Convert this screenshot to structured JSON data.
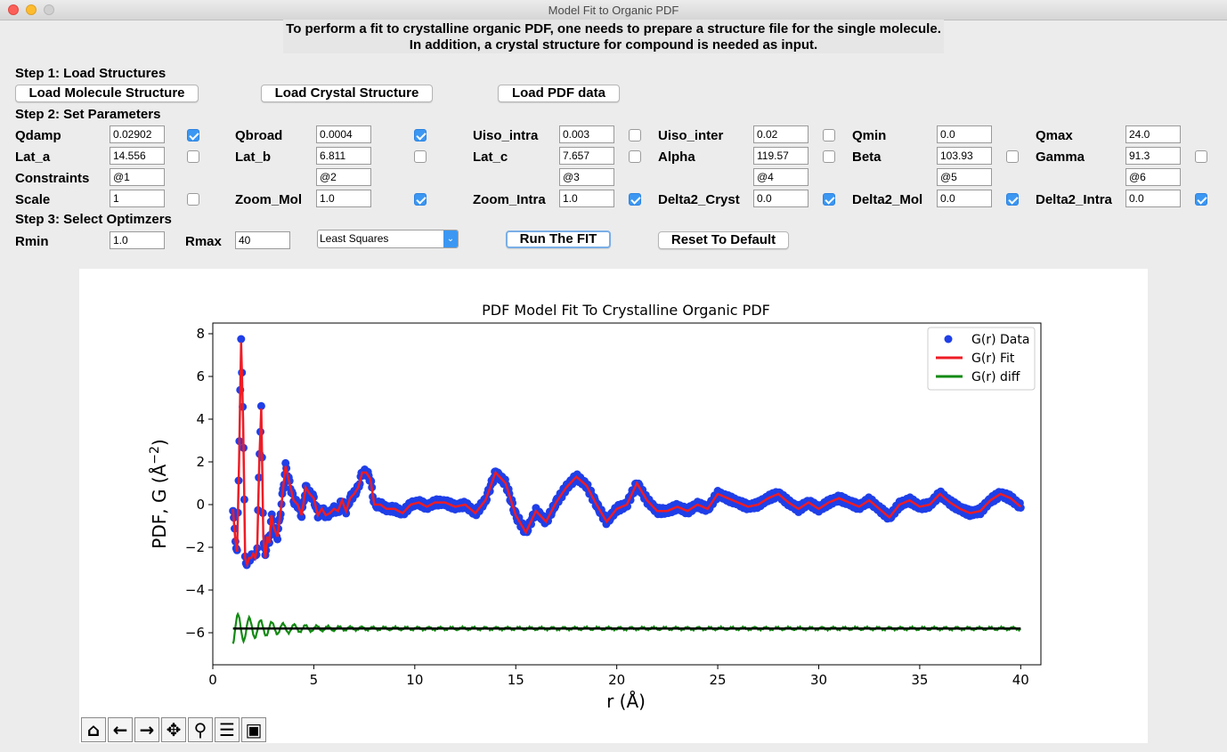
{
  "window": {
    "title": "Model Fit to Organic PDF"
  },
  "intro": {
    "line1": "To perform a fit to crystalline organic PDF, one needs to prepare a structure file for the single molecule.",
    "line2": "In addition, a crystal structure for compound is needed as input."
  },
  "step1": {
    "label": "Step 1: Load Structures",
    "load_molecule": "Load Molecule Structure",
    "load_crystal": "Load Crystal Structure",
    "load_pdf": "Load PDF data"
  },
  "step2": {
    "label": "Step 2: Set Parameters",
    "row1": [
      {
        "name": "Qdamp",
        "value": "0.02902",
        "checked": true
      },
      {
        "name": "Qbroad",
        "value": "0.0004",
        "checked": true
      },
      {
        "name": "Uiso_intra",
        "value": "0.003",
        "checked": false
      },
      {
        "name": "Uiso_inter",
        "value": "0.02",
        "checked": false
      },
      {
        "name": "Qmin",
        "value": "0.0"
      },
      {
        "name": "Qmax",
        "value": "24.0"
      }
    ],
    "row2": [
      {
        "name": "Lat_a",
        "value": "14.556",
        "checked": false
      },
      {
        "name": "Lat_b",
        "value": "6.811",
        "checked": false
      },
      {
        "name": "Lat_c",
        "value": "7.657",
        "checked": false
      },
      {
        "name": "Alpha",
        "value": "119.57",
        "checked": false
      },
      {
        "name": "Beta",
        "value": "103.93",
        "checked": false
      },
      {
        "name": "Gamma",
        "value": "91.3",
        "checked": false
      }
    ],
    "constraints_label": "Constraints",
    "constraints": [
      "@1",
      "@2",
      "@3",
      "@4",
      "@5",
      "@6"
    ],
    "row4": [
      {
        "name": "Scale",
        "value": "1",
        "checked": false
      },
      {
        "name": "Zoom_Mol",
        "value": "1.0",
        "checked": true
      },
      {
        "name": "Zoom_Intra",
        "value": "1.0",
        "checked": true
      },
      {
        "name": "Delta2_Cryst",
        "value": "0.0",
        "checked": true
      },
      {
        "name": "Delta2_Mol",
        "value": "0.0",
        "checked": true
      },
      {
        "name": "Delta2_Intra",
        "value": "0.0",
        "checked": true
      }
    ]
  },
  "step3": {
    "label": "Step 3: Select Optimzers",
    "rmin_label": "Rmin",
    "rmin": "1.0",
    "rmax_label": "Rmax",
    "rmax": "40",
    "optimizer": "Least Squares",
    "run": "Run The FIT",
    "reset": "Reset To Default"
  },
  "chart_data": {
    "type": "line",
    "title": "PDF Model Fit To Crystalline Organic PDF",
    "xlabel": "r (Å)",
    "ylabel_main": "PDF, G (Å",
    "ylabel_sup": "−2",
    "ylabel_close": ")",
    "xlim": [
      0,
      41
    ],
    "ylim": [
      -7.5,
      8.5
    ],
    "xticks": [
      0,
      5,
      10,
      15,
      20,
      25,
      30,
      35,
      40
    ],
    "yticks": [
      -6,
      -4,
      -2,
      0,
      2,
      4,
      6,
      8
    ],
    "legend_position": "top-right",
    "baseline": -5.8,
    "colors": {
      "data": "#1f3fe8",
      "fit": "#ee1c25",
      "diff": "#138a13",
      "baseline": "#000000"
    },
    "series": [
      {
        "name": "G(r) Data",
        "style": "scatter"
      },
      {
        "name": "G(r) Fit",
        "style": "line"
      },
      {
        "name": "G(r) diff",
        "style": "line"
      }
    ],
    "fit_x": [
      1.0,
      1.1,
      1.2,
      1.3,
      1.4,
      1.5,
      1.6,
      1.7,
      1.8,
      1.9,
      2.0,
      2.1,
      2.2,
      2.3,
      2.4,
      2.5,
      2.6,
      2.7,
      2.8,
      2.9,
      3.0,
      3.2,
      3.4,
      3.6,
      3.8,
      4.0,
      4.2,
      4.4,
      4.6,
      4.8,
      5.0,
      5.2,
      5.4,
      5.6,
      5.8,
      6.0,
      6.2,
      6.4,
      6.6,
      6.8,
      7.0,
      7.2,
      7.4,
      7.6,
      7.8,
      8.0,
      8.3,
      8.6,
      9.0,
      9.4,
      9.8,
      10.2,
      10.6,
      11.0,
      11.5,
      12.0,
      12.5,
      13.0,
      13.5,
      14.0,
      14.5,
      15.0,
      15.5,
      16.0,
      16.5,
      17.0,
      17.5,
      18.0,
      18.5,
      19.0,
      19.5,
      20.0,
      20.5,
      21.0,
      21.5,
      22.0,
      22.5,
      23.0,
      23.5,
      24.0,
      24.5,
      25.0,
      25.5,
      26.0,
      26.5,
      27.0,
      27.5,
      28.0,
      28.5,
      29.0,
      29.5,
      30.0,
      30.5,
      31.0,
      31.5,
      32.0,
      32.5,
      33.0,
      33.5,
      34.0,
      34.5,
      35.0,
      35.5,
      36.0,
      36.5,
      37.0,
      37.5,
      38.0,
      38.5,
      39.0,
      39.5,
      40.0
    ],
    "fit_y": [
      -0.2,
      -1.5,
      -2.2,
      2.0,
      7.6,
      4.0,
      -2.5,
      -2.8,
      -2.5,
      -2.5,
      -2.3,
      -2.5,
      -2.0,
      2.0,
      4.5,
      -1.5,
      -2.5,
      -1.5,
      -1.8,
      -0.5,
      -1.0,
      -1.5,
      0.0,
      1.8,
      1.0,
      0.2,
      0.0,
      -0.5,
      0.8,
      0.5,
      0.3,
      -0.5,
      -0.2,
      -0.5,
      -0.4,
      -0.2,
      -0.3,
      0.2,
      -0.3,
      0.3,
      0.5,
      0.8,
      1.5,
      1.5,
      1.2,
      0.0,
      0.0,
      -0.2,
      -0.2,
      -0.4,
      0.0,
      0.1,
      -0.1,
      0.1,
      0.1,
      -0.1,
      0.0,
      -0.4,
      0.2,
      1.5,
      1.0,
      -0.5,
      -1.3,
      -0.3,
      -0.8,
      0.1,
      0.8,
      1.3,
      0.9,
      0.0,
      -0.8,
      -0.2,
      0.0,
      1.0,
      0.2,
      -0.3,
      -0.3,
      -0.1,
      -0.3,
      0.0,
      -0.2,
      0.5,
      0.3,
      0.1,
      -0.1,
      0.0,
      0.3,
      0.5,
      0.1,
      -0.2,
      0.1,
      -0.2,
      0.1,
      0.3,
      0.1,
      -0.1,
      0.2,
      -0.2,
      -0.6,
      0.0,
      0.2,
      -0.1,
      0.0,
      0.5,
      0.1,
      -0.2,
      -0.4,
      -0.3,
      0.2,
      0.5,
      0.3,
      -0.1,
      -0.2,
      -0.1
    ]
  },
  "toolbar": [
    "home-icon",
    "back-icon",
    "forward-icon",
    "pan-icon",
    "zoom-icon",
    "configure-icon",
    "save-icon"
  ]
}
